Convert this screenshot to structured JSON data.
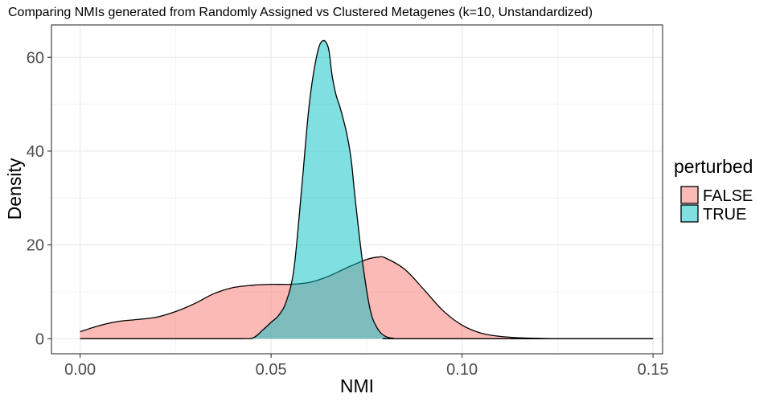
{
  "chart_data": {
    "type": "area",
    "title": "Comparing NMIs generated from Randomly Assigned vs Clustered Metagenes (k=10, Unstandardized)",
    "xlabel": "NMI",
    "ylabel": "Density",
    "xlim": [
      -0.0075,
      0.1525
    ],
    "ylim": [
      -3.2,
      66.9
    ],
    "x_ticks": [
      0.0,
      0.05,
      0.1,
      0.15
    ],
    "x_tick_labels": [
      "0.00",
      "0.05",
      "0.10",
      "0.15"
    ],
    "y_ticks": [
      0,
      20,
      40,
      60
    ],
    "y_tick_labels": [
      "0",
      "20",
      "40",
      "60"
    ],
    "grid": true,
    "legend": {
      "title": "perturbed",
      "position": "right",
      "entries": [
        {
          "label": "FALSE",
          "color": "#f8766d"
        },
        {
          "label": "TRUE",
          "color": "#00bfc4"
        }
      ]
    },
    "series": [
      {
        "name": "FALSE",
        "color": "#f8766d",
        "x": [
          0.0,
          0.005,
          0.01,
          0.015,
          0.02,
          0.025,
          0.03,
          0.035,
          0.04,
          0.045,
          0.05,
          0.055,
          0.06,
          0.065,
          0.07,
          0.075,
          0.078,
          0.08,
          0.085,
          0.09,
          0.095,
          0.1,
          0.105,
          0.11,
          0.115,
          0.12,
          0.125,
          0.13,
          0.14,
          0.15
        ],
        "y": [
          1.5,
          2.8,
          3.7,
          4.1,
          4.6,
          5.8,
          7.5,
          9.6,
          10.9,
          11.4,
          11.6,
          11.6,
          12.0,
          13.3,
          15.2,
          16.9,
          17.4,
          17.2,
          14.8,
          10.5,
          6.0,
          2.9,
          1.2,
          0.5,
          0.2,
          0.1,
          0.0,
          0.0,
          0.0,
          0.0
        ]
      },
      {
        "name": "TRUE",
        "color": "#00bfc4",
        "x": [
          0.0,
          0.04,
          0.045,
          0.048,
          0.05,
          0.052,
          0.054,
          0.056,
          0.058,
          0.06,
          0.062,
          0.0635,
          0.065,
          0.066,
          0.067,
          0.068,
          0.069,
          0.07,
          0.071,
          0.072,
          0.074,
          0.076,
          0.078,
          0.08,
          0.082,
          0.085,
          0.15
        ],
        "y": [
          0.0,
          0.0,
          0.1,
          2.0,
          3.5,
          5.0,
          8.0,
          15.0,
          32.0,
          50.0,
          60.5,
          63.5,
          62.0,
          56.0,
          52.0,
          49.5,
          46.5,
          43.0,
          38.0,
          30.0,
          16.0,
          6.0,
          2.0,
          0.5,
          0.1,
          0.0,
          0.0
        ]
      }
    ]
  }
}
